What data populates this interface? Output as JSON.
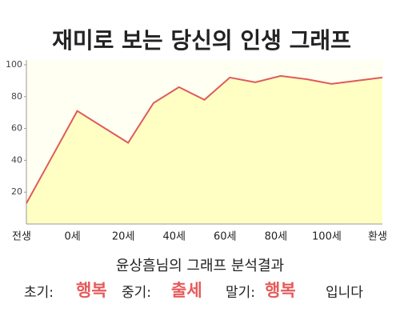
{
  "chart_data": {
    "type": "area",
    "title": "재미로 보는 당신의 인생 그래프",
    "categories": [
      "전생",
      null,
      "0세",
      null,
      "20세",
      null,
      "40세",
      null,
      "60세",
      null,
      "80세",
      null,
      "100세",
      null,
      "환생"
    ],
    "values": [
      13,
      42,
      71,
      61,
      51,
      76,
      86,
      78,
      92,
      89,
      93,
      91,
      88,
      90,
      92
    ],
    "color": "#e05a5a",
    "fill": "#ffffc4",
    "ylim": [
      0,
      100
    ],
    "yticks": [
      20,
      40,
      60,
      80,
      100
    ],
    "grid": false
  },
  "result": {
    "heading": "윤상흠님의 그래프 분석결과",
    "early_label": "초기:",
    "early": "행복",
    "middle_label": "중기:",
    "middle": "출세",
    "late_label": "말기:",
    "late": "행복",
    "ending": "입니다"
  }
}
